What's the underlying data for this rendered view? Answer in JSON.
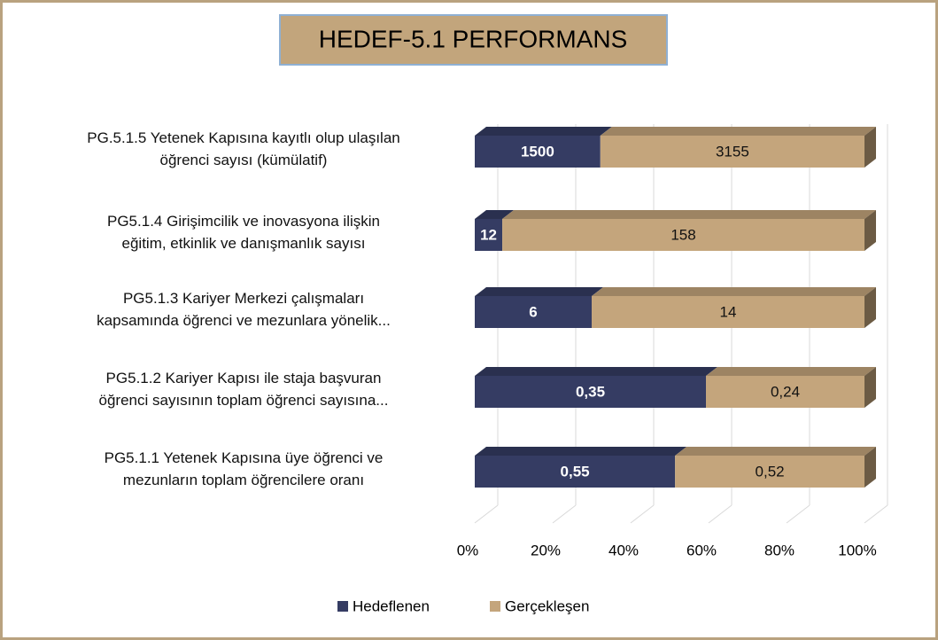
{
  "chart_data": {
    "type": "bar",
    "orientation": "horizontal",
    "stacking": "percent",
    "title": "HEDEF-5.1 PERFORMANS",
    "categories": [
      "PG.5.1.5 Yetenek Kapısına kayıtlı olup ulaşılan\nöğrenci sayısı (kümülatif)",
      "PG5.1.4 Girişimcilik ve inovasyona ilişkin\neğitim, etkinlik ve danışmanlık sayısı",
      "PG5.1.3 Kariyer Merkezi çalışmaları\nkapsamında öğrenci ve mezunlara yönelik...",
      "PG5.1.2 Kariyer Kapısı ile staja başvuran\nöğrenci sayısının toplam öğrenci sayısına...",
      "PG5.1.1 Yetenek Kapısına üye öğrenci ve\nmezunların toplam öğrencilere oranı"
    ],
    "series": [
      {
        "name": "Hedeflenen",
        "color": "#353c63",
        "values": [
          1500,
          12,
          6,
          0.35,
          0.55
        ],
        "value_labels": [
          "1500",
          "12",
          "6",
          "0,35",
          "0,55"
        ]
      },
      {
        "name": "Gerçekleşen",
        "color": "#c4a57c",
        "values": [
          3155,
          158,
          14,
          0.24,
          0.52
        ],
        "value_labels": [
          "3155",
          "158",
          "14",
          "0,24",
          "0,52"
        ]
      }
    ],
    "xlim": [
      0,
      100
    ],
    "xticks": [
      {
        "value": 0,
        "label": "0%"
      },
      {
        "value": 20,
        "label": "20%"
      },
      {
        "value": 40,
        "label": "40%"
      },
      {
        "value": 60,
        "label": "60%"
      },
      {
        "value": 80,
        "label": "80%"
      },
      {
        "value": 100,
        "label": "100%"
      }
    ],
    "grid": true,
    "legend": "bottom"
  }
}
